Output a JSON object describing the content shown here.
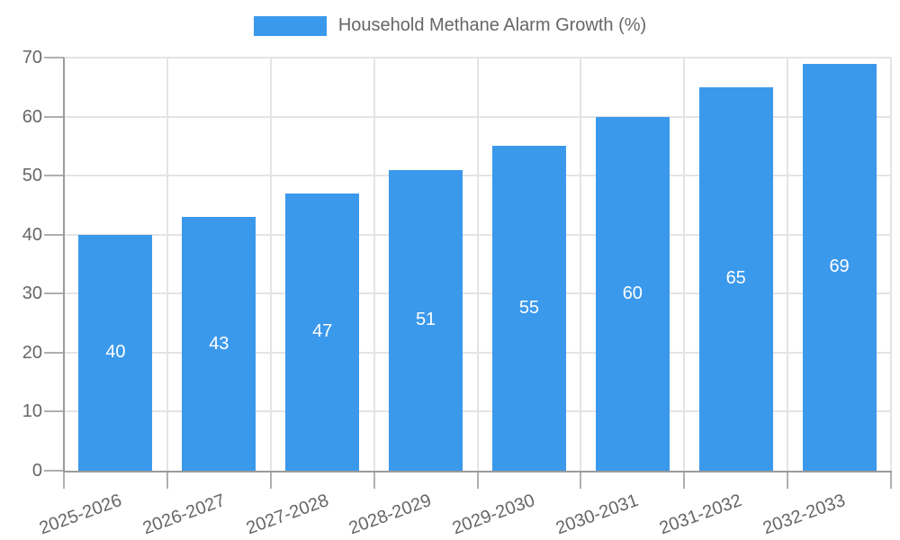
{
  "chart_data": {
    "type": "bar",
    "title": "Household Methane Alarm Growth (%)",
    "categories": [
      "2025-2026",
      "2026-2027",
      "2027-2028",
      "2028-2029",
      "2029-2030",
      "2030-2031",
      "2031-2032",
      "2032-2033"
    ],
    "series": [
      {
        "name": "Household Methane Alarm Growth (%)",
        "values": [
          40,
          43,
          47,
          51,
          55,
          60,
          65,
          69
        ]
      }
    ],
    "xlabel": "",
    "ylabel": "",
    "ylim": [
      0,
      70
    ],
    "yticks": [
      0,
      10,
      20,
      30,
      40,
      50,
      60,
      70
    ],
    "grid": true,
    "legend_position": "top",
    "bar_color": "#3b99ec",
    "value_label_color": "#ffffff",
    "tick_text_color": "#666666"
  }
}
